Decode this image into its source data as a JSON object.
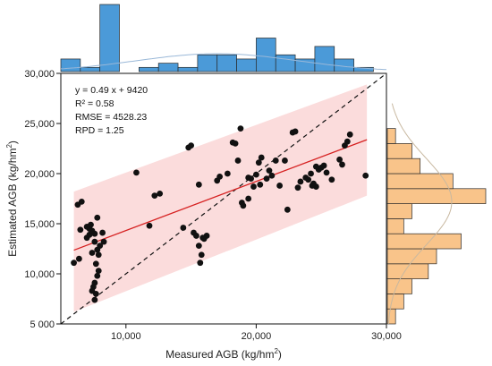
{
  "chart_data": {
    "type": "scatter",
    "xlabel": {
      "main": "Measured AGB (kg/hm",
      "sup": "2",
      "end": ")"
    },
    "ylabel": {
      "main": "Estimated AGB (kg/hm",
      "sup": "2",
      "end": ")"
    },
    "xlim": [
      5000,
      30000
    ],
    "ylim": [
      5000,
      30000
    ],
    "x_ticks": [
      10000,
      20000,
      30000
    ],
    "x_tick_labels": [
      "10,000",
      "20,000",
      "30,000"
    ],
    "y_ticks": [
      5000,
      10000,
      15000,
      20000,
      25000,
      30000
    ],
    "y_tick_labels": [
      "5 000",
      "10,000",
      "15,000",
      "20,000",
      "25,000",
      "30,000"
    ],
    "annotations": [
      "y = 0.49 x + 9420",
      "R² = 0.58",
      "RMSE = 4528.23",
      "RPD = 1.25"
    ],
    "regression": {
      "slope": 0.49,
      "intercept": 9420,
      "x_range": [
        6000,
        28500
      ]
    },
    "prediction_band": {
      "x": [
        6000,
        28500
      ],
      "upper": [
        18200,
        28900
      ],
      "lower": [
        6200,
        17800
      ]
    },
    "identity_line": true,
    "colors": {
      "points": "#111111",
      "regression": "#d62020",
      "band": "#fbdcdc",
      "identity": "#111111",
      "top_hist": "#4b9ad8",
      "right_hist": "#f9c48a",
      "density": "#9ab8d8",
      "density_right": "#c8b8a0"
    },
    "points": [
      [
        6000,
        11100
      ],
      [
        6400,
        11500
      ],
      [
        6300,
        16900
      ],
      [
        6600,
        17200
      ],
      [
        6500,
        14400
      ],
      [
        7000,
        13600
      ],
      [
        7200,
        13900
      ],
      [
        7400,
        14300
      ],
      [
        7600,
        14000
      ],
      [
        7800,
        15600
      ],
      [
        7300,
        14900
      ],
      [
        7600,
        13200
      ],
      [
        7800,
        12400
      ],
      [
        7400,
        12100
      ],
      [
        7900,
        11900
      ],
      [
        7700,
        11000
      ],
      [
        7900,
        10300
      ],
      [
        7800,
        9800
      ],
      [
        7600,
        9100
      ],
      [
        7500,
        8700
      ],
      [
        7400,
        8300
      ],
      [
        7700,
        8000
      ],
      [
        7600,
        7400
      ],
      [
        8200,
        14100
      ],
      [
        8300,
        13200
      ],
      [
        8000,
        12800
      ],
      [
        7200,
        14500
      ],
      [
        7000,
        14700
      ],
      [
        10800,
        20100
      ],
      [
        11800,
        14800
      ],
      [
        12200,
        17800
      ],
      [
        12600,
        18000
      ],
      [
        14400,
        14600
      ],
      [
        14800,
        22600
      ],
      [
        15000,
        22800
      ],
      [
        15200,
        14100
      ],
      [
        15400,
        13800
      ],
      [
        15600,
        12800
      ],
      [
        15800,
        11900
      ],
      [
        15700,
        11100
      ],
      [
        16000,
        13500
      ],
      [
        16200,
        13800
      ],
      [
        15900,
        13600
      ],
      [
        15600,
        18900
      ],
      [
        17000,
        19300
      ],
      [
        17200,
        19700
      ],
      [
        17800,
        20000
      ],
      [
        18200,
        23100
      ],
      [
        18400,
        23000
      ],
      [
        18800,
        24500
      ],
      [
        18600,
        21300
      ],
      [
        18900,
        17100
      ],
      [
        19000,
        16800
      ],
      [
        19400,
        17500
      ],
      [
        19800,
        18700
      ],
      [
        19600,
        19500
      ],
      [
        20000,
        19900
      ],
      [
        20300,
        18900
      ],
      [
        20200,
        21100
      ],
      [
        20400,
        21600
      ],
      [
        20800,
        19500
      ],
      [
        21200,
        19800
      ],
      [
        21500,
        21300
      ],
      [
        21800,
        18800
      ],
      [
        21000,
        20300
      ],
      [
        22200,
        21300
      ],
      [
        22400,
        16400
      ],
      [
        22800,
        24100
      ],
      [
        23000,
        24200
      ],
      [
        23400,
        19200
      ],
      [
        23800,
        19600
      ],
      [
        24000,
        19400
      ],
      [
        24200,
        20000
      ],
      [
        24400,
        19000
      ],
      [
        24600,
        18700
      ],
      [
        24800,
        20400
      ],
      [
        25000,
        20600
      ],
      [
        25200,
        20800
      ],
      [
        25400,
        20100
      ],
      [
        24600,
        20700
      ],
      [
        25800,
        19400
      ],
      [
        26400,
        21400
      ],
      [
        26800,
        22800
      ],
      [
        27000,
        23200
      ],
      [
        27200,
        23900
      ],
      [
        26600,
        20900
      ],
      [
        28400,
        19800
      ],
      [
        23200,
        18600
      ],
      [
        24300,
        18800
      ],
      [
        19400,
        19600
      ]
    ],
    "top_histogram": {
      "bin_edges": [
        5000,
        6500,
        8000,
        9500,
        11000,
        12500,
        14000,
        15500,
        17000,
        18500,
        20000,
        21500,
        23000,
        24500,
        26000,
        27500,
        29000
      ],
      "counts": [
        3,
        1,
        16,
        0,
        1,
        2,
        1,
        4,
        4,
        3,
        8,
        4,
        3,
        6,
        3,
        1
      ]
    },
    "right_histogram": {
      "bin_edges": [
        5000,
        6500,
        8000,
        9500,
        11000,
        12500,
        14000,
        15500,
        17000,
        18500,
        20000,
        21500,
        23000,
        24500,
        26000,
        27500,
        29000
      ],
      "counts": [
        1,
        2,
        3,
        5,
        6,
        9,
        2,
        3,
        12,
        8,
        4,
        3,
        1,
        0,
        0,
        0
      ]
    }
  }
}
